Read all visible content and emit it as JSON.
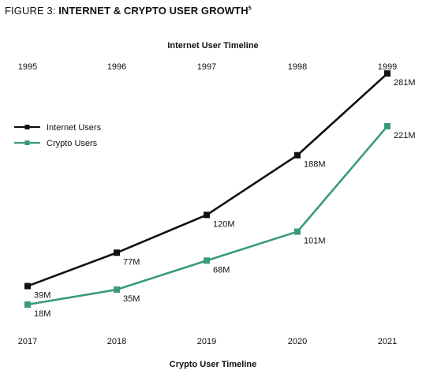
{
  "figure": {
    "label": "FIGURE 3: ",
    "title": "INTERNET & CRYPTO USER GROWTH",
    "footnote": "5"
  },
  "chart_data": {
    "type": "line",
    "top_axis": {
      "label": "Internet User Timeline",
      "ticks": [
        "1995",
        "1996",
        "1997",
        "1998",
        "1999"
      ]
    },
    "bottom_axis": {
      "label": "Crypto User Timeline",
      "ticks": [
        "2017",
        "2018",
        "2019",
        "2020",
        "2021"
      ]
    },
    "unit": "M",
    "ylim": [
      0,
      300
    ],
    "grid": false,
    "legend_position": "left",
    "series": [
      {
        "name": "Internet Users",
        "axis": "top",
        "color": "#111111",
        "x": [
          "1995",
          "1996",
          "1997",
          "1998",
          "1999"
        ],
        "values": [
          39,
          77,
          120,
          188,
          281
        ],
        "data_labels": [
          "39M",
          "77M",
          "120M",
          "188M",
          "281M"
        ]
      },
      {
        "name": "Crypto Users",
        "axis": "bottom",
        "color": "#3a9a7c",
        "x": [
          "2017",
          "2018",
          "2019",
          "2020",
          "2021"
        ],
        "values": [
          18,
          35,
          68,
          101,
          221
        ],
        "data_labels": [
          "18M",
          "35M",
          "68M",
          "101M",
          "221M"
        ]
      }
    ]
  }
}
